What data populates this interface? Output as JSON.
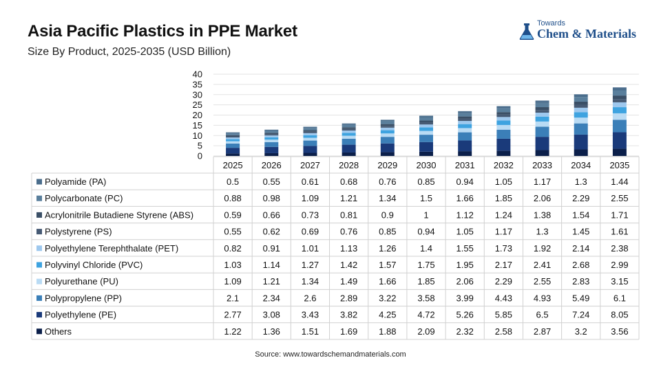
{
  "header": {
    "title": "Asia Pacific Plastics in PPE Market",
    "subtitle": "Size By Product, 2025-2035 (USD Billion)"
  },
  "logo": {
    "top_text": "Towards",
    "main_text": "Chem & Materials"
  },
  "source": "Source: www.towardschemandmaterials.com",
  "chart_data": {
    "type": "bar",
    "stacked": true,
    "ylim": [
      0,
      40
    ],
    "yticks": [
      0,
      5,
      10,
      15,
      20,
      25,
      30,
      35,
      40
    ],
    "grid": true,
    "categories": [
      "2025",
      "2026",
      "2027",
      "2028",
      "2029",
      "2030",
      "2031",
      "2032",
      "2033",
      "2034",
      "2035"
    ],
    "series": [
      {
        "name": "Polyamide (PA)",
        "color": "#4a6d8c",
        "values": [
          "0.5",
          "0.55",
          "0.61",
          "0.68",
          "0.76",
          "0.85",
          "0.94",
          "1.05",
          "1.17",
          "1.3",
          "1.44"
        ]
      },
      {
        "name": "Polycarbonate (PC)",
        "color": "#5a7f9c",
        "values": [
          "0.88",
          "0.98",
          "1.09",
          "1.21",
          "1.34",
          "1.5",
          "1.66",
          "1.85",
          "2.06",
          "2.29",
          "2.55"
        ]
      },
      {
        "name": "Acrylonitrile Butadiene Styrene (ABS)",
        "color": "#3a4f66",
        "values": [
          "0.59",
          "0.66",
          "0.73",
          "0.81",
          "0.9",
          "1",
          "1.12",
          "1.24",
          "1.38",
          "1.54",
          "1.71"
        ]
      },
      {
        "name": "Polystyrene (PS)",
        "color": "#465a74",
        "values": [
          "0.55",
          "0.62",
          "0.69",
          "0.76",
          "0.85",
          "0.94",
          "1.05",
          "1.17",
          "1.3",
          "1.45",
          "1.61"
        ]
      },
      {
        "name": "Polyethylene Terephthalate (PET)",
        "color": "#9ec8ee",
        "values": [
          "0.82",
          "0.91",
          "1.01",
          "1.13",
          "1.26",
          "1.4",
          "1.55",
          "1.73",
          "1.92",
          "2.14",
          "2.38"
        ]
      },
      {
        "name": "Polyvinyl Chloride (PVC)",
        "color": "#3ea3e0",
        "values": [
          "1.03",
          "1.14",
          "1.27",
          "1.42",
          "1.57",
          "1.75",
          "1.95",
          "2.17",
          "2.41",
          "2.68",
          "2.99"
        ]
      },
      {
        "name": "Polyurethane (PU)",
        "color": "#b9dbf4",
        "values": [
          "1.09",
          "1.21",
          "1.34",
          "1.49",
          "1.66",
          "1.85",
          "2.06",
          "2.29",
          "2.55",
          "2.83",
          "3.15"
        ]
      },
      {
        "name": "Polypropylene (PP)",
        "color": "#3b7fb8",
        "values": [
          "2.1",
          "2.34",
          "2.6",
          "2.89",
          "3.22",
          "3.58",
          "3.99",
          "4.43",
          "4.93",
          "5.49",
          "6.1"
        ]
      },
      {
        "name": "Polyethylene (PE)",
        "color": "#1a3a7a",
        "values": [
          "2.77",
          "3.08",
          "3.43",
          "3.82",
          "4.25",
          "4.72",
          "5.26",
          "5.85",
          "6.5",
          "7.24",
          "8.05"
        ]
      },
      {
        "name": "Others",
        "color": "#0b1f4a",
        "values": [
          "1.22",
          "1.36",
          "1.51",
          "1.69",
          "1.88",
          "2.09",
          "2.32",
          "2.58",
          "2.87",
          "3.2",
          "3.56"
        ]
      }
    ]
  }
}
